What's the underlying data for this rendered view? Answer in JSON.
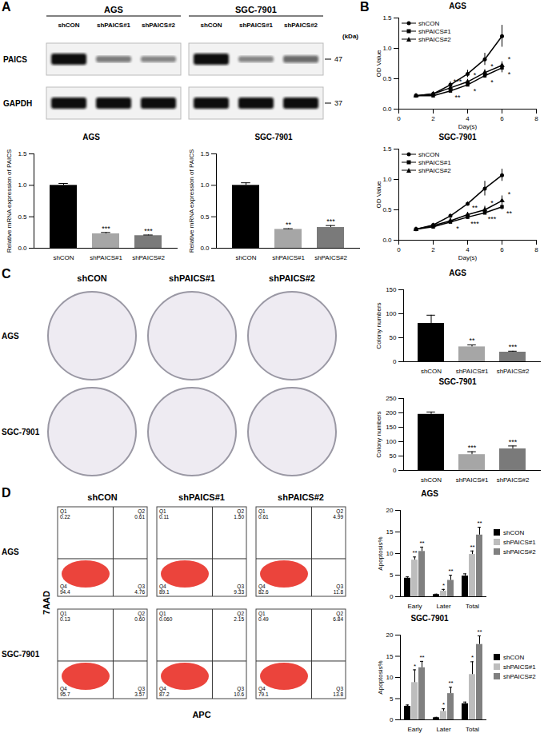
{
  "panel_labels": [
    "A",
    "B",
    "C",
    "D"
  ],
  "blot": {
    "cell_lines": [
      "AGS",
      "SGC-7901"
    ],
    "lanes": [
      "shCON",
      "shPAICS#1",
      "shPAICS#2"
    ],
    "unit": "(kDa)",
    "proteins": [
      {
        "name": "PAICS",
        "size": 47,
        "band_intensity": [
          [
            1,
            0.35,
            0.3
          ],
          [
            1,
            0.3,
            0.45
          ]
        ]
      },
      {
        "name": "GAPDH",
        "size": 37,
        "band_intensity": [
          [
            1,
            1,
            1
          ],
          [
            1,
            1,
            1
          ]
        ]
      }
    ]
  },
  "chart_data": [
    {
      "type": "bar",
      "title": "AGS",
      "y_label": "Relative mRNA expression of PAICS",
      "categories": [
        "shCON",
        "shPAICS#1",
        "shPAICS#2"
      ],
      "values": [
        1.0,
        0.23,
        0.2
      ],
      "errors": [
        0.03,
        0.02,
        0.01
      ],
      "significance": [
        null,
        "***",
        "***"
      ],
      "colors": [
        "#000000",
        "#a6a6a6",
        "#7a7a7a"
      ],
      "ylim": [
        0,
        1.5
      ],
      "yticks": [
        {
          "value": 0,
          "label": "0.0"
        },
        {
          "value": 0.5,
          "label": "0.5"
        },
        {
          "value": 1,
          "label": "1.0"
        },
        {
          "value": 1.5,
          "label": "1.5"
        }
      ]
    },
    {
      "type": "bar",
      "title": "SGC-7901",
      "y_label": "Relative mRNA expression of PAICS",
      "categories": [
        "shCON",
        "shPAICS#1",
        "shPAICS#2"
      ],
      "values": [
        1.0,
        0.3,
        0.33
      ],
      "errors": [
        0.04,
        0.01,
        0.03
      ],
      "significance": [
        null,
        "**",
        "***"
      ],
      "colors": [
        "#000000",
        "#a6a6a6",
        "#7a7a7a"
      ],
      "ylim": [
        0,
        1.5
      ],
      "yticks": [
        {
          "value": 0,
          "label": "0.0"
        },
        {
          "value": 0.5,
          "label": "0.5"
        },
        {
          "value": 1,
          "label": "1.0"
        },
        {
          "value": 1.5,
          "label": "1.5"
        }
      ]
    },
    {
      "type": "line",
      "title": "AGS",
      "x_label": "Day(s)",
      "y_label": "OD Value",
      "x": [
        1,
        2,
        3,
        4,
        5,
        6
      ],
      "series": [
        {
          "name": "shCON",
          "color": "#000000",
          "marker": "circle",
          "values": [
            0.22,
            0.25,
            0.4,
            0.58,
            0.82,
            1.2
          ],
          "errors": [
            0.02,
            0.02,
            0.05,
            0.06,
            0.1,
            0.18
          ],
          "significance": [
            null,
            null,
            null,
            null,
            null,
            null
          ]
        },
        {
          "name": "shPAICS#1",
          "color": "#000000",
          "marker": "square",
          "values": [
            0.22,
            0.22,
            0.3,
            0.4,
            0.55,
            0.68
          ],
          "errors": [
            0.02,
            0.02,
            0.03,
            0.03,
            0.04,
            0.08
          ],
          "significance": [
            null,
            null,
            "**",
            "*",
            "*",
            "*"
          ]
        },
        {
          "name": "shPAICS#2",
          "color": "#000000",
          "marker": "triangle",
          "values": [
            0.22,
            0.25,
            0.35,
            0.45,
            0.6,
            0.72
          ],
          "errors": [
            0.02,
            0.02,
            0.04,
            0.04,
            0.05,
            0.06
          ],
          "significance": [
            null,
            null,
            "***",
            "*",
            "*",
            "*"
          ]
        }
      ],
      "xlim": [
        0,
        8
      ],
      "xticks": [
        0,
        2,
        4,
        6,
        8
      ],
      "ylim": [
        0,
        1.5
      ],
      "yticks": [
        {
          "value": 0,
          "label": "0.0"
        },
        {
          "value": 0.5,
          "label": "0.5"
        },
        {
          "value": 1,
          "label": "1.0"
        },
        {
          "value": 1.5,
          "label": "1.5"
        }
      ],
      "legend": "top-left"
    },
    {
      "type": "line",
      "title": "SGC-7901",
      "x_label": "Day(s)",
      "y_label": "OD Value",
      "x": [
        1,
        2,
        3,
        4,
        5,
        6
      ],
      "series": [
        {
          "name": "shCON",
          "color": "#000000",
          "marker": "circle",
          "values": [
            0.18,
            0.25,
            0.4,
            0.6,
            0.85,
            1.07
          ],
          "errors": [
            0.02,
            0.02,
            0.03,
            0.03,
            0.12,
            0.1
          ],
          "significance": [
            null,
            null,
            null,
            null,
            null,
            null
          ]
        },
        {
          "name": "shPAICS#1",
          "color": "#000000",
          "marker": "square",
          "values": [
            0.18,
            0.22,
            0.3,
            0.38,
            0.45,
            0.55
          ],
          "errors": [
            0.01,
            0.02,
            0.02,
            0.03,
            0.03,
            0.05
          ],
          "significance": [
            null,
            null,
            "*",
            "***",
            "***",
            "**"
          ]
        },
        {
          "name": "shPAICS#2",
          "color": "#000000",
          "marker": "triangle",
          "values": [
            0.18,
            0.24,
            0.32,
            0.42,
            0.5,
            0.65
          ],
          "errors": [
            0.01,
            0.02,
            0.03,
            0.04,
            0.06,
            0.08
          ],
          "significance": [
            null,
            null,
            null,
            "**",
            "*",
            "*"
          ]
        }
      ],
      "xlim": [
        0,
        8
      ],
      "xticks": [
        0,
        2,
        4,
        6,
        8
      ],
      "ylim": [
        0,
        1.5
      ],
      "yticks": [
        {
          "value": 0,
          "label": "0.0"
        },
        {
          "value": 0.5,
          "label": "0.5"
        },
        {
          "value": 1,
          "label": "1.0"
        },
        {
          "value": 1.5,
          "label": "1.5"
        }
      ],
      "legend": "top-left"
    },
    {
      "type": "bar",
      "title": "AGS",
      "y_label": "Colony numbers",
      "categories": [
        "shCON",
        "shPAICS#1",
        "shPAICS#2"
      ],
      "values": [
        80,
        31,
        20
      ],
      "errors": [
        17,
        4,
        2
      ],
      "significance": [
        null,
        "**",
        "***"
      ],
      "colors": [
        "#000000",
        "#a6a6a6",
        "#7a7a7a"
      ],
      "ylim": [
        0,
        150
      ],
      "yticks": [
        0,
        50,
        100,
        150
      ]
    },
    {
      "type": "bar",
      "title": "SGC-7901",
      "y_label": "Colony numbers",
      "categories": [
        "shCON",
        "shPAICS#1",
        "shPAICS#2"
      ],
      "values": [
        195,
        55,
        75
      ],
      "errors": [
        8,
        10,
        10
      ],
      "significance": [
        null,
        "***",
        "***"
      ],
      "colors": [
        "#000000",
        "#a6a6a6",
        "#7a7a7a"
      ],
      "ylim": [
        0,
        250
      ],
      "yticks": [
        0,
        50,
        100,
        150,
        200,
        250
      ]
    },
    {
      "type": "grouped_bar",
      "title": "AGS",
      "y_label": "Apoptosis%",
      "categories": [
        "Early",
        "Later",
        "Total"
      ],
      "series": [
        {
          "name": "shCON",
          "color": "#000000",
          "values": [
            4.3,
            0.5,
            4.8
          ],
          "errors": [
            0.3,
            0.1,
            0.5
          ],
          "significance": [
            null,
            null,
            null
          ]
        },
        {
          "name": "shPAICS#1",
          "color": "#bdbdbd",
          "values": [
            8.5,
            1.3,
            9.8
          ],
          "errors": [
            0.7,
            0.4,
            0.8
          ],
          "significance": [
            "**",
            "*",
            "**"
          ]
        },
        {
          "name": "shPAICS#2",
          "color": "#808080",
          "values": [
            10.5,
            3.8,
            14.3
          ],
          "errors": [
            1.0,
            1.2,
            1.8
          ],
          "significance": [
            "**",
            "**",
            "**"
          ]
        }
      ],
      "ylim": [
        0,
        20
      ],
      "yticks": [
        0,
        5,
        10,
        15,
        20
      ],
      "legend": "right"
    },
    {
      "type": "grouped_bar",
      "title": "SGC-7901",
      "y_label": "Apoptosis%",
      "categories": [
        "Early",
        "Later",
        "Total"
      ],
      "series": [
        {
          "name": "shCON",
          "color": "#000000",
          "values": [
            3.2,
            0.5,
            3.8
          ],
          "errors": [
            0.3,
            0.1,
            0.4
          ],
          "significance": [
            null,
            null,
            null
          ]
        },
        {
          "name": "shPAICS#1",
          "color": "#bdbdbd",
          "values": [
            8.8,
            2.0,
            10.7
          ],
          "errors": [
            3.0,
            0.6,
            3.0
          ],
          "significance": [
            "*",
            "*",
            "*"
          ]
        },
        {
          "name": "shPAICS#2",
          "color": "#808080",
          "values": [
            12.3,
            6.2,
            17.8
          ],
          "errors": [
            1.5,
            1.5,
            2.0
          ],
          "significance": [
            "**",
            "**",
            "**"
          ]
        }
      ],
      "ylim": [
        0,
        20
      ],
      "yticks": [
        0,
        5,
        10,
        15,
        20
      ],
      "legend": "right"
    }
  ],
  "colony_plates": {
    "columns": [
      "shCON",
      "shPAICS#1",
      "shPAICS#2"
    ],
    "rows": [
      "AGS",
      "SGC-7901"
    ]
  },
  "flow": {
    "columns": [
      "shCON",
      "shPAICS#1",
      "shPAICS#2"
    ],
    "rows": [
      "AGS",
      "SGC-7901"
    ],
    "x_label": "APC",
    "y_label": "7AAD",
    "quadrant_names": [
      "Q1",
      "Q2",
      "Q3",
      "Q4"
    ],
    "percentages": [
      [
        [
          0.22,
          0.61,
          4.76,
          94.4
        ],
        [
          0.11,
          {
            "value": 1.5,
            "label": "1.50"
          },
          9.33,
          89.1
        ],
        [
          0.61,
          4.99,
          11.8,
          82.6
        ]
      ],
      [
        [
          0.13,
          {
            "value": 0.6,
            "label": "0.60"
          },
          3.57,
          95.7
        ],
        [
          {
            "value": 0.06,
            "label": "0.060"
          },
          2.15,
          10.6,
          87.2
        ],
        [
          0.49,
          6.84,
          13.8,
          79.1
        ]
      ]
    ]
  }
}
